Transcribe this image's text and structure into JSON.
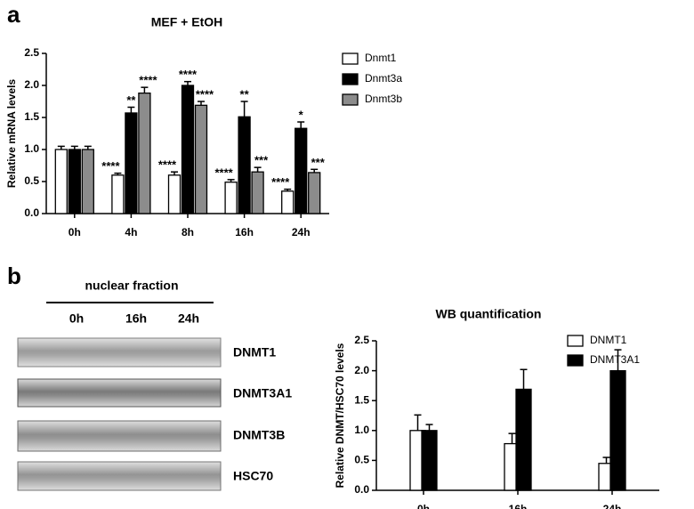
{
  "panel_labels": [
    "a",
    "b"
  ],
  "blot": {
    "title": "nuclear fraction",
    "lanes": [
      "0h",
      "16h",
      "24h"
    ],
    "bands": [
      "DNMT1",
      "DNMT3A1",
      "DNMT3B",
      "HSC70"
    ]
  },
  "chart_data": [
    {
      "type": "bar",
      "title": "MEF + EtOH",
      "y_label": "Relative mRNA levels",
      "categories": [
        "0h",
        "4h",
        "8h",
        "16h",
        "24h"
      ],
      "ylim": [
        0,
        2.5
      ],
      "yticks": [
        {
          "value": 0,
          "label": "0.0"
        },
        {
          "value": 0.5,
          "label": "0.5"
        },
        {
          "value": 1,
          "label": "1.0"
        },
        {
          "value": 1.5,
          "label": "1.5"
        },
        {
          "value": 2,
          "label": "2.0"
        },
        {
          "value": 2.5,
          "label": "2.5"
        }
      ],
      "series": [
        {
          "name": "Dnmt1",
          "color": "#ffffff",
          "values": [
            1.0,
            0.6,
            0.6,
            0.49,
            0.35
          ],
          "errors": [
            0.05,
            0.03,
            0.05,
            0.04,
            0.03
          ],
          "annotations": [
            null,
            "****",
            "****",
            "****",
            "****"
          ]
        },
        {
          "name": "Dnmt3a",
          "color": "#000000",
          "values": [
            1.0,
            1.57,
            2.0,
            1.51,
            1.33
          ],
          "errors": [
            0.05,
            0.09,
            0.06,
            0.24,
            0.1
          ],
          "annotations": [
            null,
            "**",
            "****",
            "**",
            "*"
          ]
        },
        {
          "name": "Dnmt3b",
          "color": "#8c8c8c",
          "values": [
            1.0,
            1.88,
            1.69,
            0.65,
            0.64
          ],
          "errors": [
            0.05,
            0.09,
            0.06,
            0.07,
            0.05
          ],
          "annotations": [
            null,
            "****",
            "****",
            "***",
            "***"
          ]
        }
      ]
    },
    {
      "type": "bar",
      "title": "WB quantification",
      "y_label": "Relative  DNMT/HSC70  levels",
      "categories": [
        "0h",
        "16h",
        "24h"
      ],
      "ylim": [
        0,
        2.5
      ],
      "yticks": [
        {
          "value": 0,
          "label": "0.0"
        },
        {
          "value": 0.5,
          "label": "0.5"
        },
        {
          "value": 1,
          "label": "1.0"
        },
        {
          "value": 1.5,
          "label": "1.5"
        },
        {
          "value": 2,
          "label": "2.0"
        },
        {
          "value": 2.5,
          "label": "2.5"
        }
      ],
      "series": [
        {
          "name": "DNMT1",
          "color": "#ffffff",
          "values": [
            1.0,
            0.78,
            0.45
          ],
          "errors": [
            0.26,
            0.17,
            0.1
          ]
        },
        {
          "name": "DNMT3A1",
          "color": "#000000",
          "values": [
            1.0,
            1.69,
            2.0
          ],
          "errors": [
            0.1,
            0.33,
            0.35
          ]
        }
      ]
    }
  ]
}
